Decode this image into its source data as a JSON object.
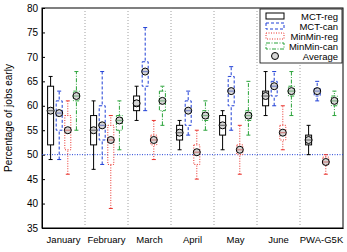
{
  "chart_data": {
    "type": "box",
    "y_label": "Percentage of jobs early",
    "categories": [
      "January",
      "February",
      "March",
      "April",
      "May",
      "June",
      "PWA-G5K"
    ],
    "ylim": [
      35,
      80
    ],
    "yticks": [
      35,
      40,
      45,
      50,
      55,
      60,
      65,
      70,
      75,
      80
    ],
    "reference_line": 50,
    "legend": "upper right",
    "mean_name": "Average",
    "series": [
      {
        "name": "MCT-reg",
        "color": "#000000",
        "line_style": "solid",
        "min": [
          49,
          47,
          57,
          51,
          51,
          58,
          50
        ],
        "q1": [
          52,
          52,
          59,
          53,
          54,
          60,
          52
        ],
        "median": [
          59,
          55,
          60,
          54.5,
          56,
          62,
          53
        ],
        "q3": [
          64,
          58,
          62,
          56,
          58,
          63,
          54
        ],
        "max": [
          66,
          61,
          64,
          57,
          59,
          67,
          56
        ],
        "mean": [
          59,
          55,
          60.5,
          54.5,
          56,
          62,
          53
        ]
      },
      {
        "name": "MCT-can",
        "color": "#1f3fd6",
        "line_style": "dashed",
        "min": [
          49,
          48,
          59,
          54,
          55,
          60,
          61
        ],
        "q1": [
          55,
          53,
          64,
          56,
          60,
          62,
          62
        ],
        "median": [
          58.5,
          56,
          67,
          59,
          63,
          64,
          63
        ],
        "q3": [
          61,
          60,
          69,
          61,
          66,
          65,
          63.5
        ],
        "max": [
          63,
          67,
          76,
          63,
          68,
          67,
          65
        ],
        "mean": [
          58.5,
          56,
          67,
          59,
          63,
          64,
          63
        ]
      },
      {
        "name": "MinMin-reg",
        "color": "#e8302a",
        "line_style": "dotted",
        "min": [
          46,
          39,
          49,
          45,
          46,
          51,
          46
        ],
        "q1": [
          51,
          48,
          52,
          48,
          50,
          53,
          48
        ],
        "median": [
          55,
          53,
          53,
          50.5,
          51,
          54.5,
          48.5
        ],
        "q3": [
          58,
          56,
          54,
          52,
          52,
          56,
          49.5
        ],
        "max": [
          61,
          58,
          57,
          55,
          56,
          60,
          50
        ],
        "mean": [
          55,
          53,
          53,
          50.5,
          51,
          54.5,
          48.5
        ]
      },
      {
        "name": "MinMin-can",
        "color": "#2aa33a",
        "line_style": "dashdot",
        "min": [
          55,
          51,
          56,
          55,
          54,
          58,
          58
        ],
        "q1": [
          61,
          55,
          59,
          57,
          57,
          62,
          60
        ],
        "median": [
          62,
          57,
          61,
          58,
          58,
          63,
          61
        ],
        "q3": [
          63,
          58,
          63,
          59,
          59,
          64,
          62
        ],
        "max": [
          67,
          61,
          64,
          61,
          65,
          67,
          63
        ],
        "mean": [
          62,
          57,
          61,
          58,
          58,
          63,
          61
        ]
      }
    ]
  }
}
